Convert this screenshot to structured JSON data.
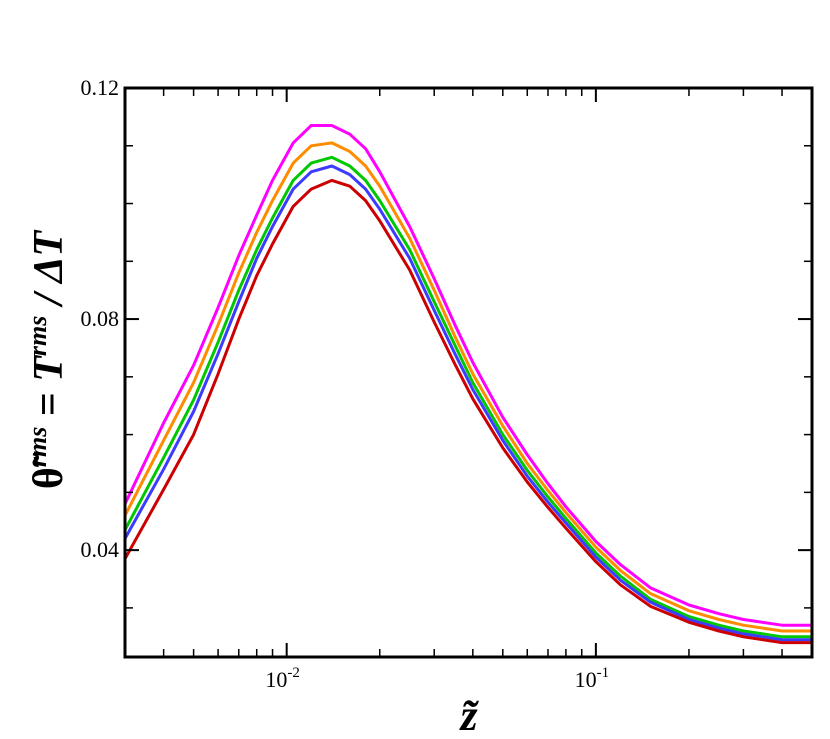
{
  "chart_data": {
    "type": "line",
    "xscale": "log",
    "xlim": [
      0.003,
      0.5
    ],
    "ylim": [
      0.0215,
      0.12
    ],
    "grid": false,
    "xlabel": "z̃",
    "ylabel": "θ̃rms = Trms / ΔT",
    "ylabel_parts": {
      "theta": "θ̃",
      "sup1": "rms",
      "eq": " = ",
      "T": "T",
      "sup2": "rms",
      "rest": " / ΔT"
    },
    "y_tick_labels": [
      {
        "value": 0.04,
        "label": "0.04"
      },
      {
        "value": 0.08,
        "label": "0.08"
      },
      {
        "value": 0.12,
        "label": "0.12"
      }
    ],
    "x_tick_labels": [
      {
        "value": 0.01,
        "base": "10",
        "exp": "-2"
      },
      {
        "value": 0.1,
        "base": "10",
        "exp": "-1"
      }
    ],
    "x": [
      0.003,
      0.004,
      0.005,
      0.006,
      0.007,
      0.008,
      0.009,
      0.0105,
      0.012,
      0.014,
      0.016,
      0.018,
      0.02,
      0.025,
      0.03,
      0.035,
      0.04,
      0.05,
      0.06,
      0.07,
      0.08,
      0.1,
      0.12,
      0.15,
      0.2,
      0.25,
      0.3,
      0.4,
      0.5
    ],
    "series": [
      {
        "color": "#ff00ff",
        "values": [
          0.048,
          0.062,
          0.072,
          0.082,
          0.091,
          0.098,
          0.104,
          0.1105,
          0.1135,
          0.1135,
          0.112,
          0.1095,
          0.1055,
          0.096,
          0.087,
          0.079,
          0.0725,
          0.063,
          0.0565,
          0.0515,
          0.0475,
          0.0415,
          0.0375,
          0.0335,
          0.0305,
          0.029,
          0.028,
          0.027,
          0.027
        ]
      },
      {
        "color": "#ff8c00",
        "values": [
          0.046,
          0.059,
          0.069,
          0.079,
          0.088,
          0.095,
          0.1005,
          0.107,
          0.11,
          0.1105,
          0.109,
          0.1065,
          0.103,
          0.094,
          0.085,
          0.077,
          0.0705,
          0.0615,
          0.055,
          0.0503,
          0.0465,
          0.0405,
          0.0365,
          0.0325,
          0.0295,
          0.028,
          0.027,
          0.026,
          0.026
        ]
      },
      {
        "color": "#00c800",
        "values": [
          0.0435,
          0.056,
          0.066,
          0.076,
          0.085,
          0.092,
          0.0975,
          0.104,
          0.107,
          0.108,
          0.1065,
          0.104,
          0.1005,
          0.092,
          0.083,
          0.0755,
          0.069,
          0.06,
          0.0538,
          0.0492,
          0.0455,
          0.0395,
          0.0355,
          0.0315,
          0.0285,
          0.027,
          0.026,
          0.025,
          0.025
        ]
      },
      {
        "color": "#3c3cff",
        "values": [
          0.042,
          0.054,
          0.064,
          0.074,
          0.083,
          0.0905,
          0.096,
          0.1025,
          0.1055,
          0.1065,
          0.105,
          0.1025,
          0.099,
          0.0905,
          0.0815,
          0.074,
          0.0678,
          0.059,
          0.0528,
          0.0483,
          0.0447,
          0.0388,
          0.0348,
          0.031,
          0.028,
          0.0265,
          0.0255,
          0.0245,
          0.0245
        ]
      },
      {
        "color": "#cc0000",
        "values": [
          0.0385,
          0.0505,
          0.06,
          0.0705,
          0.08,
          0.0875,
          0.093,
          0.0995,
          0.1025,
          0.104,
          0.103,
          0.1005,
          0.097,
          0.0885,
          0.0795,
          0.0722,
          0.0662,
          0.0577,
          0.0518,
          0.0474,
          0.0438,
          0.038,
          0.034,
          0.0303,
          0.0275,
          0.026,
          0.025,
          0.024,
          0.024
        ]
      }
    ]
  }
}
